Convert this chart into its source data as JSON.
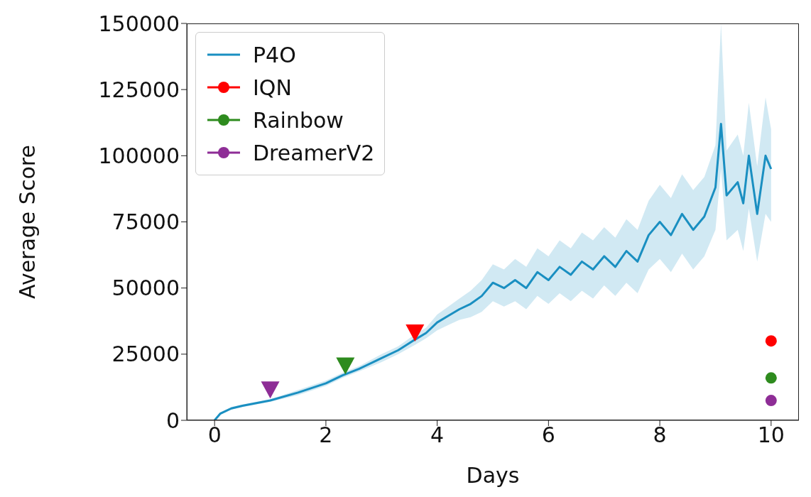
{
  "chart_data": {
    "type": "line",
    "xlabel": "Days",
    "ylabel": "Average Score",
    "xlim": [
      -0.5,
      10.5
    ],
    "ylim": [
      0,
      150000
    ],
    "xticks": [
      0,
      2,
      4,
      6,
      8,
      10
    ],
    "yticks": [
      0,
      25000,
      50000,
      75000,
      100000,
      125000,
      150000
    ],
    "grid": false,
    "legend": "top left",
    "series": [
      {
        "name": "P4O",
        "color": "#1a8fc1",
        "marker": "none",
        "x": [
          0,
          0.1,
          0.3,
          0.5,
          1.0,
          1.5,
          2.0,
          2.3,
          2.6,
          3.0,
          3.3,
          3.6,
          3.8,
          4.0,
          4.2,
          4.4,
          4.6,
          4.8,
          5.0,
          5.2,
          5.4,
          5.6,
          5.8,
          6.0,
          6.2,
          6.4,
          6.6,
          6.8,
          7.0,
          7.2,
          7.4,
          7.6,
          7.8,
          8.0,
          8.2,
          8.4,
          8.6,
          8.8,
          9.0,
          9.1,
          9.2,
          9.4,
          9.5,
          9.6,
          9.75,
          9.9,
          10.0
        ],
        "values": [
          0,
          2500,
          4500,
          5500,
          7500,
          10500,
          14000,
          17000,
          19500,
          23500,
          26500,
          30500,
          33000,
          37000,
          39500,
          42000,
          44000,
          47000,
          52000,
          50000,
          53000,
          50000,
          56000,
          53000,
          58000,
          55000,
          60000,
          57000,
          62000,
          58000,
          64000,
          60000,
          70000,
          75000,
          70000,
          78000,
          72000,
          77000,
          88000,
          112000,
          85000,
          90000,
          82000,
          100000,
          78000,
          100000,
          95000
        ],
        "lower": [
          0,
          2000,
          4000,
          5000,
          7000,
          9500,
          13000,
          16000,
          18500,
          22000,
          25000,
          28500,
          31000,
          34000,
          36000,
          38000,
          39000,
          41000,
          45000,
          43000,
          45000,
          42000,
          47000,
          44000,
          48000,
          45000,
          49000,
          46000,
          51000,
          47000,
          52000,
          48000,
          57000,
          61000,
          56000,
          63000,
          57000,
          62000,
          72000,
          95000,
          68000,
          72000,
          64000,
          80000,
          60000,
          78000,
          75000
        ],
        "upper": [
          0,
          3000,
          5000,
          6000,
          8000,
          11500,
          15000,
          18000,
          20500,
          25000,
          28000,
          32500,
          35000,
          40000,
          43000,
          46000,
          49000,
          53000,
          59000,
          57000,
          61000,
          58000,
          65000,
          62000,
          68000,
          65000,
          71000,
          68000,
          73000,
          69000,
          76000,
          72000,
          83000,
          89000,
          84000,
          93000,
          87000,
          92000,
          104000,
          150000,
          102000,
          108000,
          100000,
          120000,
          96000,
          122000,
          110000
        ]
      },
      {
        "name": "IQN",
        "type": "scatter",
        "color": "#ff0000",
        "marker": "circle",
        "x": [
          10
        ],
        "values": [
          30000
        ]
      },
      {
        "name": "Rainbow",
        "type": "scatter",
        "color": "#2e8b1e",
        "marker": "circle",
        "x": [
          10
        ],
        "values": [
          16000
        ]
      },
      {
        "name": "DreamerV2",
        "type": "scatter",
        "color": "#8e2d96",
        "marker": "circle",
        "x": [
          10
        ],
        "values": [
          7500
        ]
      },
      {
        "type": "scatter",
        "color": "#ff0000",
        "marker": "triangle",
        "x": [
          3.6
        ],
        "values": [
          33000
        ]
      },
      {
        "type": "scatter",
        "color": "#2e8b1e",
        "marker": "triangle",
        "x": [
          2.35
        ],
        "values": [
          20500
        ]
      },
      {
        "type": "scatter",
        "color": "#8e2d96",
        "marker": "triangle",
        "x": [
          1.0
        ],
        "values": [
          11500
        ]
      }
    ]
  }
}
